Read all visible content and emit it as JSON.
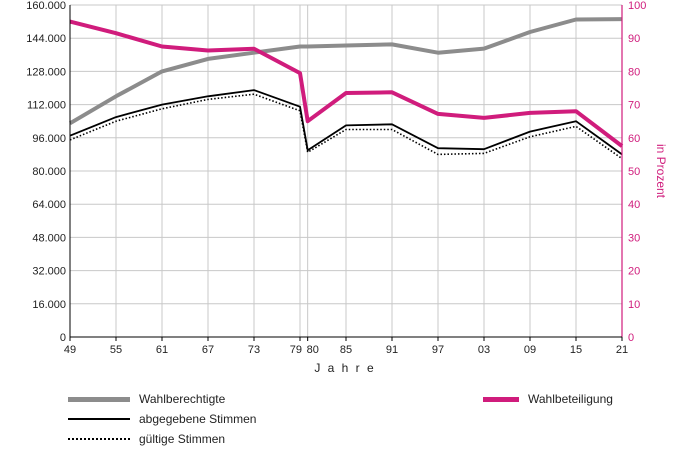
{
  "chart_data": {
    "type": "line",
    "xlabel": "J a h r e",
    "ylabel_right": "in Prozent",
    "x_tick_labels": [
      "49",
      "55",
      "61",
      "67",
      "73",
      "79",
      "80",
      "85",
      "91",
      "97",
      "03",
      "09",
      "15",
      "21"
    ],
    "x": [
      1949,
      1955,
      1961,
      1967,
      1973,
      1979,
      1980,
      1985,
      1991,
      1997,
      2003,
      2009,
      2015,
      2021
    ],
    "ylim_left": [
      0,
      160000
    ],
    "yticks_left": [
      "0",
      "16.000",
      "32.000",
      "48.000",
      "64.000",
      "80.000",
      "96.000",
      "112.000",
      "128.000",
      "144.000",
      "160.000"
    ],
    "ylim_right": [
      0,
      100
    ],
    "yticks_right": [
      "0",
      "10",
      "20",
      "30",
      "40",
      "50",
      "60",
      "70",
      "80",
      "90",
      "100"
    ],
    "grid": true,
    "series": [
      {
        "name": "Wahlberechtigte",
        "axis": "left",
        "color": "#8c8c8c",
        "style": "thick",
        "values": [
          103000,
          116000,
          128000,
          134000,
          137000,
          140000,
          140000,
          140500,
          141000,
          137000,
          139000,
          147000,
          153000,
          153200
        ]
      },
      {
        "name": "abgegebene Stimmen",
        "axis": "left",
        "color": "#000000",
        "style": "solid",
        "values": [
          97000,
          106000,
          112000,
          116000,
          119000,
          111000,
          90000,
          102000,
          102500,
          91000,
          90500,
          99000,
          104000,
          88000
        ]
      },
      {
        "name": "gültige Stimmen",
        "axis": "left",
        "color": "#000000",
        "style": "dotted",
        "values": [
          95000,
          104000,
          110000,
          114500,
          117000,
          109000,
          89000,
          100000,
          100000,
          88000,
          88500,
          96500,
          101500,
          86000
        ]
      },
      {
        "name": "Wahlbeteiligung",
        "axis": "right",
        "color": "#d01c7c",
        "style": "thick",
        "values": [
          95,
          91.5,
          87.5,
          86.3,
          86.8,
          79.5,
          65,
          73.5,
          73.7,
          67.2,
          66,
          67.5,
          68,
          57.5
        ]
      }
    ]
  },
  "legend": {
    "wahlberechtigte": "Wahlberechtigte",
    "abgegebene": "abgegebene Stimmen",
    "gueltige": "gültige Stimmen",
    "wahlbeteiligung": "Wahlbeteiligung"
  }
}
